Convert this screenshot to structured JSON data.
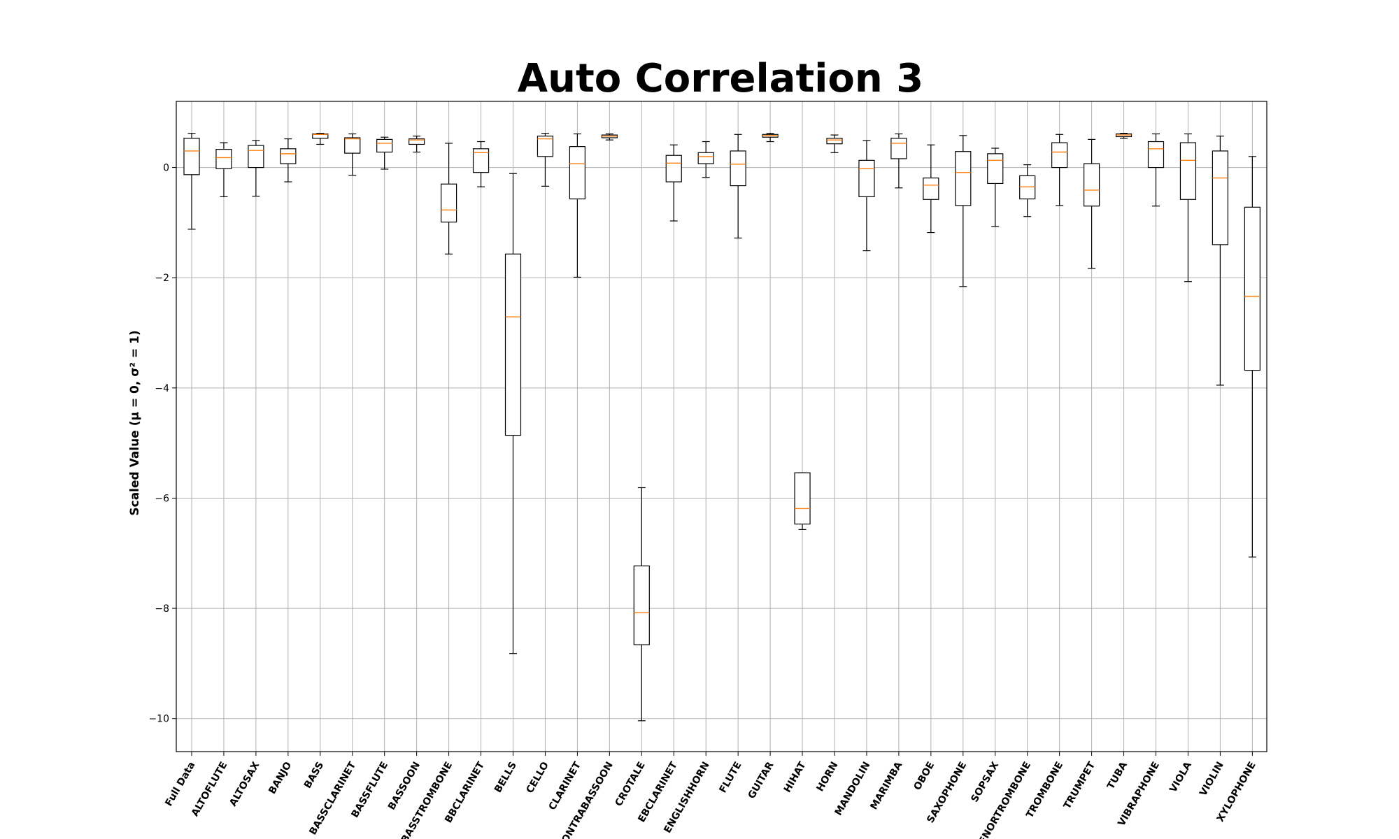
{
  "chart_data": {
    "type": "box",
    "title": "Auto Correlation 3",
    "xlabel": "",
    "ylabel": "Scaled Value (μ = 0, σ² = 1)",
    "ylim": [
      -10.6,
      1.2
    ],
    "yticks": [
      0,
      -2,
      -4,
      -6,
      -8,
      -10
    ],
    "ytick_labels": [
      "0",
      "−2",
      "−4",
      "−6",
      "−8",
      "−10"
    ],
    "grid": true,
    "colors": {
      "box": "#000000",
      "median": "#ff7f0e",
      "grid": "#b0b0b0"
    },
    "categories": [
      "Full Data",
      "ALTOFLUTE",
      "ALTOSAX",
      "BANJO",
      "BASS",
      "BASSCLARINET",
      "BASSFLUTE",
      "BASSOON",
      "BASSTROMBONE",
      "BBCLARINET",
      "BELLS",
      "CELLO",
      "CLARINET",
      "CONTRABASSOON",
      "CROTALE",
      "EBCLARINET",
      "ENGLISHHORN",
      "FLUTE",
      "GUITAR",
      "HIHAT",
      "HORN",
      "MANDOLIN",
      "MARIMBA",
      "OBOE",
      "SAXOPHONE",
      "SOPSAX",
      "TENORTROMBONE",
      "TROMBONE",
      "TRUMPET",
      "TUBA",
      "VIBRAPHONE",
      "VIOLA",
      "VIOLIN",
      "XYLOPHONE"
    ],
    "boxes": [
      {
        "whislo": -1.12,
        "q1": -0.13,
        "med": 0.3,
        "q3": 0.53,
        "whishi": 0.62
      },
      {
        "whislo": -0.53,
        "q1": -0.02,
        "med": 0.18,
        "q3": 0.33,
        "whishi": 0.45
      },
      {
        "whislo": -0.52,
        "q1": 0.0,
        "med": 0.31,
        "q3": 0.4,
        "whishi": 0.49
      },
      {
        "whislo": -0.26,
        "q1": 0.07,
        "med": 0.25,
        "q3": 0.34,
        "whishi": 0.52
      },
      {
        "whislo": 0.42,
        "q1": 0.53,
        "med": 0.6,
        "q3": 0.61,
        "whishi": 0.62
      },
      {
        "whislo": -0.14,
        "q1": 0.26,
        "med": 0.52,
        "q3": 0.54,
        "whishi": 0.61
      },
      {
        "whislo": -0.03,
        "q1": 0.28,
        "med": 0.44,
        "q3": 0.51,
        "whishi": 0.55
      },
      {
        "whislo": 0.28,
        "q1": 0.42,
        "med": 0.5,
        "q3": 0.52,
        "whishi": 0.57
      },
      {
        "whislo": -1.57,
        "q1": -0.99,
        "med": -0.77,
        "q3": -0.3,
        "whishi": 0.44
      },
      {
        "whislo": -0.35,
        "q1": -0.09,
        "med": 0.27,
        "q3": 0.34,
        "whishi": 0.47
      },
      {
        "whislo": -8.82,
        "q1": -4.86,
        "med": -2.71,
        "q3": -1.57,
        "whishi": -0.11
      },
      {
        "whislo": -0.34,
        "q1": 0.2,
        "med": 0.52,
        "q3": 0.57,
        "whishi": 0.62
      },
      {
        "whislo": -1.99,
        "q1": -0.57,
        "med": 0.07,
        "q3": 0.38,
        "whishi": 0.61
      },
      {
        "whislo": 0.5,
        "q1": 0.54,
        "med": 0.57,
        "q3": 0.59,
        "whishi": 0.61
      },
      {
        "whislo": -10.04,
        "q1": -8.66,
        "med": -8.08,
        "q3": -7.23,
        "whishi": -5.81
      },
      {
        "whislo": -0.97,
        "q1": -0.26,
        "med": 0.08,
        "q3": 0.22,
        "whishi": 0.41
      },
      {
        "whislo": -0.18,
        "q1": 0.07,
        "med": 0.2,
        "q3": 0.27,
        "whishi": 0.47
      },
      {
        "whislo": -1.28,
        "q1": -0.33,
        "med": 0.06,
        "q3": 0.3,
        "whishi": 0.6
      },
      {
        "whislo": 0.47,
        "q1": 0.55,
        "med": 0.58,
        "q3": 0.6,
        "whishi": 0.62
      },
      {
        "whislo": -6.57,
        "q1": -6.47,
        "med": -6.19,
        "q3": -5.54,
        "whishi": -5.54
      },
      {
        "whislo": 0.27,
        "q1": 0.43,
        "med": 0.5,
        "q3": 0.53,
        "whishi": 0.59
      },
      {
        "whislo": -1.51,
        "q1": -0.53,
        "med": -0.02,
        "q3": 0.13,
        "whishi": 0.49
      },
      {
        "whislo": -0.37,
        "q1": 0.16,
        "med": 0.44,
        "q3": 0.53,
        "whishi": 0.61
      },
      {
        "whislo": -1.18,
        "q1": -0.58,
        "med": -0.32,
        "q3": -0.19,
        "whishi": 0.41
      },
      {
        "whislo": -2.16,
        "q1": -0.69,
        "med": -0.09,
        "q3": 0.29,
        "whishi": 0.58
      },
      {
        "whislo": -1.07,
        "q1": -0.29,
        "med": 0.13,
        "q3": 0.25,
        "whishi": 0.35
      },
      {
        "whislo": -0.89,
        "q1": -0.57,
        "med": -0.35,
        "q3": -0.15,
        "whishi": 0.05
      },
      {
        "whislo": -0.69,
        "q1": 0.0,
        "med": 0.28,
        "q3": 0.45,
        "whishi": 0.6
      },
      {
        "whislo": -1.83,
        "q1": -0.7,
        "med": -0.41,
        "q3": 0.07,
        "whishi": 0.51
      },
      {
        "whislo": 0.53,
        "q1": 0.56,
        "med": 0.59,
        "q3": 0.61,
        "whishi": 0.62
      },
      {
        "whislo": -0.7,
        "q1": 0.0,
        "med": 0.34,
        "q3": 0.47,
        "whishi": 0.61
      },
      {
        "whislo": -2.07,
        "q1": -0.58,
        "med": 0.13,
        "q3": 0.45,
        "whishi": 0.61
      },
      {
        "whislo": -3.95,
        "q1": -1.4,
        "med": -0.19,
        "q3": 0.3,
        "whishi": 0.57
      },
      {
        "whislo": -7.07,
        "q1": -3.68,
        "med": -2.34,
        "q3": -0.72,
        "whishi": 0.2
      }
    ]
  }
}
